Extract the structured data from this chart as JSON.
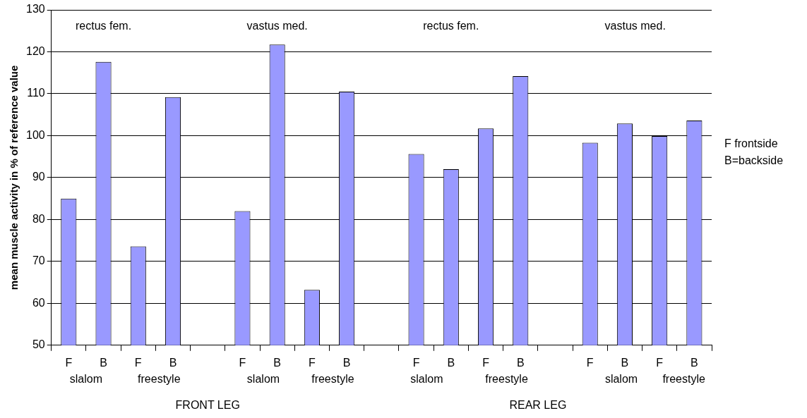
{
  "chart_data": {
    "type": "bar",
    "ylabel": "mean muscle activity in % of reference value",
    "categories": [
      "F",
      "B",
      "F",
      "B",
      null,
      "F",
      "B",
      "F",
      "B",
      null,
      "F",
      "B",
      "F",
      "B",
      null,
      "F",
      "B",
      "F",
      "B"
    ],
    "values": [
      85,
      117.6,
      73.6,
      109.2,
      null,
      82,
      121.7,
      63.2,
      110.5,
      null,
      95.6,
      92,
      101.7,
      114.2,
      null,
      98.3,
      102.9,
      99.9,
      103.6
    ],
    "color": "#9999ff",
    "ylim": [
      50,
      130
    ],
    "yticks": [
      50,
      60,
      70,
      80,
      90,
      100,
      110,
      120,
      130
    ],
    "grid": "y",
    "legend": false,
    "annotations": [
      "rectus fem.",
      "vastus med.",
      "rectus fem.",
      "vastus med.",
      "slalom",
      "freestyle",
      "slalom",
      "freestyle",
      "slalom",
      "freestyle",
      "slalom",
      "freestyle",
      "FRONT LEG",
      "REAR LEG",
      "F frontside",
      "B=backside"
    ]
  }
}
